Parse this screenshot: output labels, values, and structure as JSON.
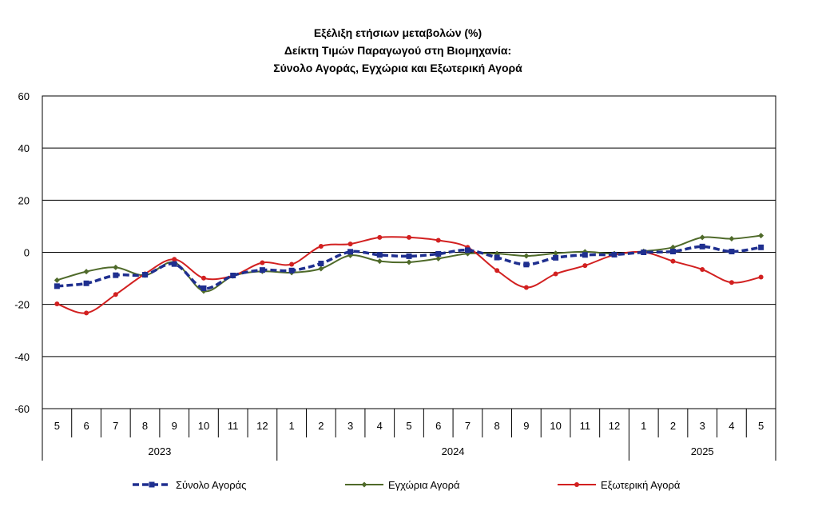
{
  "chart_data": {
    "type": "line",
    "title_lines": [
      "Εξέλιξη ετήσιων μεταβολών (%)",
      "Δείκτη Τιμών Παραγωγού στη Βιομηχανία:",
      "Σύνολο Αγοράς, Εγχώρια και Εξωτερική Αγορά"
    ],
    "ylim": [
      -60,
      60
    ],
    "yticks": [
      60,
      40,
      20,
      0,
      -20,
      -40,
      -60
    ],
    "grid": true,
    "legend_position": "bottom",
    "months": [
      "5",
      "6",
      "7",
      "8",
      "9",
      "10",
      "11",
      "12",
      "1",
      "2",
      "3",
      "4",
      "5",
      "6",
      "7",
      "8",
      "9",
      "10",
      "11",
      "12",
      "1",
      "2",
      "3",
      "4",
      "5"
    ],
    "years": [
      {
        "label": "2023",
        "start": 0,
        "count": 8
      },
      {
        "label": "2024",
        "start": 8,
        "count": 12
      },
      {
        "label": "2025",
        "start": 20,
        "count": 5
      }
    ],
    "series": [
      {
        "name": "Σύνολο Αγοράς",
        "color": "#1f2f8f",
        "style": "dashed",
        "marker": "square",
        "values": [
          -13,
          -11.9,
          -8.8,
          -8.6,
          -4.5,
          -13.8,
          -8.9,
          -6.8,
          -7.0,
          -4.3,
          0.2,
          -1.0,
          -1.5,
          -0.6,
          0.8,
          -2.0,
          -4.7,
          -2.1,
          -1.0,
          -0.9,
          0.0,
          0.3,
          2.2,
          0.3,
          1.9
        ]
      },
      {
        "name": "Εγχώρια Αγορά",
        "color": "#4f6a2a",
        "style": "solid",
        "marker": "diamond",
        "values": [
          -10.7,
          -7.4,
          -5.8,
          -8.8,
          -3.9,
          -14.9,
          -9.1,
          -7.3,
          -7.8,
          -6.3,
          -1.2,
          -3.4,
          -3.8,
          -2.4,
          -0.5,
          -0.5,
          -1.4,
          -0.4,
          0.2,
          -0.5,
          0.4,
          1.9,
          5.7,
          5.2,
          6.4
        ]
      },
      {
        "name": "Εξωτερική Αγορά",
        "color": "#d22020",
        "style": "solid",
        "marker": "circle",
        "values": [
          -19.8,
          -23.3,
          -16.2,
          -8.3,
          -2.7,
          -9.9,
          -9.0,
          -4.0,
          -4.6,
          2.3,
          3.2,
          5.7,
          5.7,
          4.6,
          1.9,
          -7.0,
          -13.5,
          -8.3,
          -5.1,
          -1.0,
          0.1,
          -3.4,
          -6.6,
          -11.6,
          -9.5
        ]
      }
    ]
  }
}
